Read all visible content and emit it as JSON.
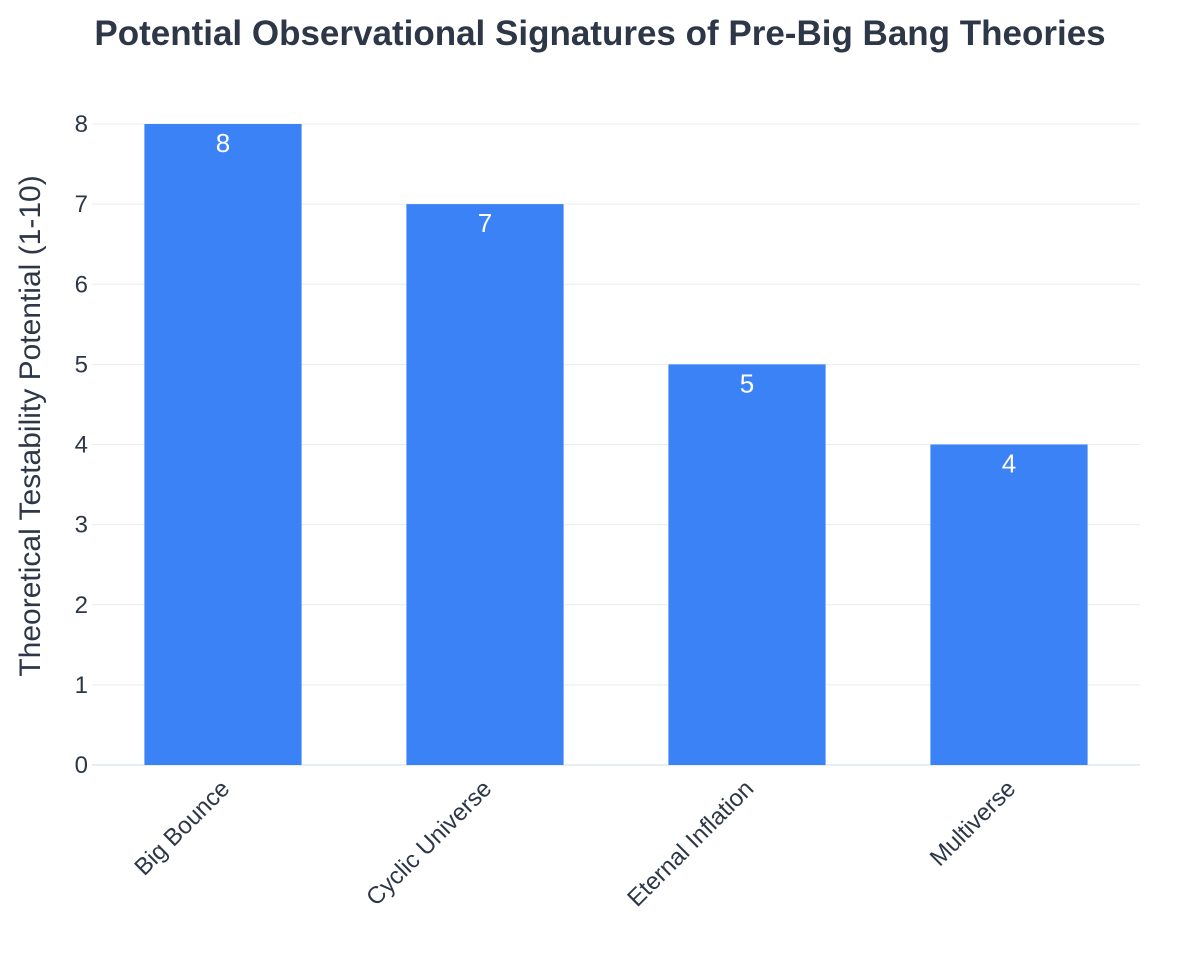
{
  "colors": {
    "bar": "#3b82f6",
    "grid": "#e8edf3",
    "text": "#2d3748",
    "data_label": "#ffffff"
  },
  "chart_data": {
    "type": "bar",
    "title": "Potential Observational Signatures of Pre-Big Bang Theories",
    "xlabel": "",
    "ylabel": "Theoretical Testability Potential (1-10)",
    "categories": [
      "Big Bounce",
      "Cyclic Universe",
      "Eternal Inflation",
      "Multiverse"
    ],
    "values": [
      8,
      7,
      5,
      4
    ],
    "data_labels": [
      "8",
      "7",
      "5",
      "4"
    ],
    "ylim": [
      0,
      8
    ],
    "yticks": [
      "0",
      "1",
      "2",
      "3",
      "4",
      "5",
      "6",
      "7",
      "8"
    ],
    "grid": true,
    "legend": "none"
  }
}
